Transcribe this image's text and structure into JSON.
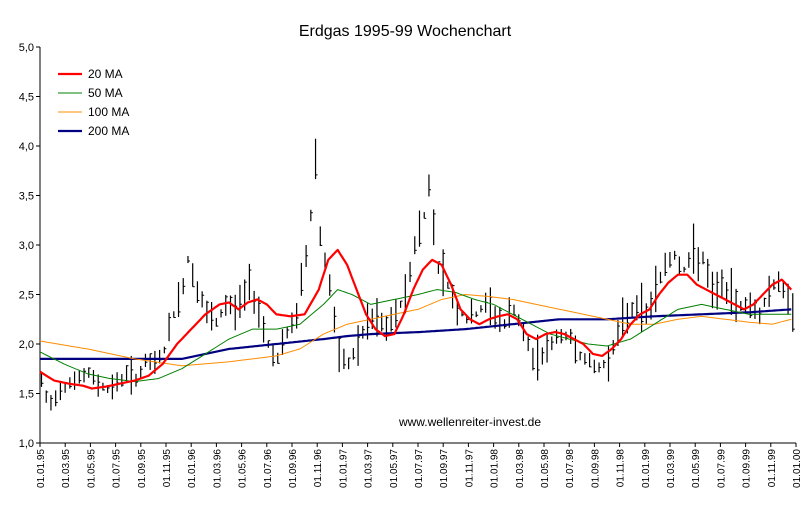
{
  "chart_data": {
    "type": "line",
    "title": "Erdgas 1995-99 Wochenchart",
    "xlabel": "",
    "ylabel": "",
    "ylim": [
      1.0,
      5.0
    ],
    "yticks": [
      "1,0",
      "1,5",
      "2,0",
      "2,5",
      "3,0",
      "3,5",
      "4,0",
      "4,5",
      "5,0"
    ],
    "ytick_values": [
      1.0,
      1.5,
      2.0,
      2.5,
      3.0,
      3.5,
      4.0,
      4.5,
      5.0
    ],
    "xticks": [
      "01.01.95",
      "01.03.95",
      "01.05.95",
      "01.07.95",
      "01.09.95",
      "01.11.95",
      "01.01.96",
      "01.03.96",
      "01.05.96",
      "01.07.96",
      "01.09.96",
      "01.11.96",
      "01.01.97",
      "01.03.97",
      "01.05.97",
      "01.07.97",
      "01.09.97",
      "01.11.97",
      "01.01.98",
      "01.03.98",
      "01.05.98",
      "01.07.98",
      "01.09.98",
      "01.11.98",
      "01.01.99",
      "01.03.99",
      "01.05.99",
      "01.07.99",
      "01.09.99",
      "01.11.99",
      "01.01.00"
    ],
    "grid": false,
    "legend_position": "top-left",
    "watermark": "www.wellenreiter-invest.de",
    "price_bars": {
      "name": "Erdgas",
      "color": "#000000",
      "anchors": [
        [
          0,
          1.62
        ],
        [
          1,
          1.45
        ],
        [
          2,
          1.4
        ],
        [
          4,
          1.55
        ],
        [
          6,
          1.62
        ],
        [
          8,
          1.65
        ],
        [
          10,
          1.7
        ],
        [
          12,
          1.6
        ],
        [
          14,
          1.55
        ],
        [
          16,
          1.6
        ],
        [
          18,
          1.7
        ],
        [
          20,
          1.65
        ],
        [
          22,
          1.8
        ],
        [
          24,
          1.8
        ],
        [
          26,
          1.95
        ],
        [
          28,
          2.3
        ],
        [
          30,
          2.6
        ],
        [
          31,
          2.85
        ],
        [
          33,
          2.55
        ],
        [
          35,
          2.3
        ],
        [
          37,
          2.2
        ],
        [
          39,
          2.4
        ],
        [
          41,
          2.35
        ],
        [
          43,
          2.5
        ],
        [
          44,
          2.6
        ],
        [
          46,
          2.35
        ],
        [
          48,
          2.0
        ],
        [
          50,
          1.85
        ],
        [
          52,
          2.1
        ],
        [
          54,
          2.3
        ],
        [
          56,
          2.9
        ],
        [
          57,
          3.3
        ],
        [
          58,
          3.9
        ],
        [
          59,
          3.1
        ],
        [
          61,
          2.6
        ],
        [
          63,
          1.85
        ],
        [
          65,
          1.8
        ],
        [
          67,
          2.0
        ],
        [
          69,
          2.2
        ],
        [
          71,
          2.25
        ],
        [
          73,
          2.15
        ],
        [
          75,
          2.3
        ],
        [
          77,
          2.5
        ],
        [
          79,
          3.0
        ],
        [
          81,
          3.3
        ],
        [
          82,
          3.6
        ],
        [
          84,
          2.8
        ],
        [
          86,
          2.6
        ],
        [
          88,
          2.35
        ],
        [
          90,
          2.25
        ],
        [
          92,
          2.3
        ],
        [
          94,
          2.4
        ],
        [
          96,
          2.3
        ],
        [
          98,
          2.2
        ],
        [
          100,
          2.35
        ],
        [
          102,
          2.1
        ],
        [
          104,
          1.85
        ],
        [
          106,
          1.9
        ],
        [
          108,
          2.0
        ],
        [
          110,
          2.1
        ],
        [
          112,
          2.05
        ],
        [
          114,
          1.9
        ],
        [
          116,
          1.8
        ],
        [
          118,
          1.75
        ],
        [
          120,
          1.85
        ],
        [
          122,
          2.1
        ],
        [
          124,
          2.3
        ],
        [
          126,
          2.4
        ],
        [
          128,
          2.3
        ],
        [
          130,
          2.55
        ],
        [
          132,
          2.8
        ],
        [
          134,
          2.9
        ],
        [
          136,
          2.75
        ],
        [
          138,
          2.9
        ],
        [
          140,
          2.85
        ],
        [
          142,
          2.5
        ],
        [
          144,
          2.6
        ],
        [
          146,
          2.45
        ],
        [
          148,
          2.4
        ],
        [
          150,
          2.4
        ],
        [
          152,
          2.3
        ],
        [
          154,
          2.55
        ],
        [
          156,
          2.65
        ],
        [
          158,
          2.4
        ]
      ]
    },
    "series": [
      {
        "name": "20 MA",
        "color": "#ff0000",
        "points": [
          [
            0,
            1.72
          ],
          [
            3,
            1.63
          ],
          [
            6,
            1.6
          ],
          [
            9,
            1.58
          ],
          [
            11,
            1.55
          ],
          [
            14,
            1.57
          ],
          [
            17,
            1.6
          ],
          [
            20,
            1.63
          ],
          [
            23,
            1.68
          ],
          [
            26,
            1.8
          ],
          [
            29,
            2.0
          ],
          [
            32,
            2.15
          ],
          [
            35,
            2.3
          ],
          [
            38,
            2.4
          ],
          [
            40,
            2.42
          ],
          [
            42,
            2.35
          ],
          [
            44,
            2.42
          ],
          [
            46,
            2.45
          ],
          [
            48,
            2.4
          ],
          [
            50,
            2.3
          ],
          [
            53,
            2.28
          ],
          [
            56,
            2.3
          ],
          [
            59,
            2.55
          ],
          [
            61,
            2.85
          ],
          [
            63,
            2.95
          ],
          [
            65,
            2.8
          ],
          [
            67,
            2.55
          ],
          [
            69,
            2.3
          ],
          [
            71,
            2.15
          ],
          [
            73,
            2.08
          ],
          [
            75,
            2.1
          ],
          [
            77,
            2.3
          ],
          [
            79,
            2.55
          ],
          [
            81,
            2.75
          ],
          [
            83,
            2.85
          ],
          [
            85,
            2.8
          ],
          [
            87,
            2.6
          ],
          [
            89,
            2.35
          ],
          [
            91,
            2.25
          ],
          [
            93,
            2.2
          ],
          [
            95,
            2.25
          ],
          [
            97,
            2.28
          ],
          [
            99,
            2.3
          ],
          [
            101,
            2.25
          ],
          [
            103,
            2.1
          ],
          [
            105,
            2.05
          ],
          [
            107,
            2.1
          ],
          [
            109,
            2.12
          ],
          [
            111,
            2.1
          ],
          [
            113,
            2.05
          ],
          [
            115,
            2.0
          ],
          [
            117,
            1.9
          ],
          [
            119,
            1.88
          ],
          [
            121,
            1.95
          ],
          [
            123,
            2.05
          ],
          [
            125,
            2.2
          ],
          [
            127,
            2.3
          ],
          [
            129,
            2.35
          ],
          [
            131,
            2.5
          ],
          [
            133,
            2.62
          ],
          [
            135,
            2.7
          ],
          [
            137,
            2.7
          ],
          [
            139,
            2.6
          ],
          [
            141,
            2.55
          ],
          [
            143,
            2.5
          ],
          [
            145,
            2.45
          ],
          [
            147,
            2.4
          ],
          [
            149,
            2.35
          ],
          [
            151,
            2.4
          ],
          [
            153,
            2.5
          ],
          [
            155,
            2.6
          ],
          [
            157,
            2.65
          ],
          [
            159,
            2.55
          ]
        ]
      },
      {
        "name": "50 MA",
        "color": "#008000",
        "points": [
          [
            0,
            1.92
          ],
          [
            5,
            1.8
          ],
          [
            10,
            1.7
          ],
          [
            15,
            1.65
          ],
          [
            20,
            1.62
          ],
          [
            25,
            1.65
          ],
          [
            30,
            1.75
          ],
          [
            35,
            1.9
          ],
          [
            40,
            2.05
          ],
          [
            45,
            2.15
          ],
          [
            50,
            2.15
          ],
          [
            55,
            2.2
          ],
          [
            60,
            2.4
          ],
          [
            63,
            2.55
          ],
          [
            66,
            2.5
          ],
          [
            70,
            2.4
          ],
          [
            75,
            2.45
          ],
          [
            80,
            2.5
          ],
          [
            84,
            2.55
          ],
          [
            88,
            2.52
          ],
          [
            92,
            2.45
          ],
          [
            96,
            2.4
          ],
          [
            100,
            2.3
          ],
          [
            104,
            2.2
          ],
          [
            108,
            2.1
          ],
          [
            112,
            2.05
          ],
          [
            116,
            2.0
          ],
          [
            120,
            1.98
          ],
          [
            125,
            2.05
          ],
          [
            130,
            2.2
          ],
          [
            135,
            2.35
          ],
          [
            140,
            2.4
          ],
          [
            145,
            2.35
          ],
          [
            150,
            2.3
          ],
          [
            155,
            2.3
          ],
          [
            159,
            2.3
          ]
        ]
      },
      {
        "name": "100 MA",
        "color": "#ff8c00",
        "points": [
          [
            0,
            2.03
          ],
          [
            10,
            1.95
          ],
          [
            20,
            1.85
          ],
          [
            30,
            1.78
          ],
          [
            40,
            1.82
          ],
          [
            50,
            1.88
          ],
          [
            55,
            1.95
          ],
          [
            60,
            2.1
          ],
          [
            65,
            2.2
          ],
          [
            70,
            2.25
          ],
          [
            75,
            2.3
          ],
          [
            80,
            2.35
          ],
          [
            85,
            2.45
          ],
          [
            90,
            2.5
          ],
          [
            95,
            2.48
          ],
          [
            100,
            2.45
          ],
          [
            105,
            2.4
          ],
          [
            110,
            2.35
          ],
          [
            115,
            2.3
          ],
          [
            120,
            2.25
          ],
          [
            125,
            2.2
          ],
          [
            130,
            2.2
          ],
          [
            135,
            2.25
          ],
          [
            140,
            2.28
          ],
          [
            145,
            2.25
          ],
          [
            150,
            2.22
          ],
          [
            155,
            2.2
          ],
          [
            159,
            2.25
          ]
        ]
      },
      {
        "name": "200 MA",
        "color": "#000080",
        "points": [
          [
            0,
            1.85
          ],
          [
            10,
            1.85
          ],
          [
            20,
            1.85
          ],
          [
            30,
            1.85
          ],
          [
            40,
            1.95
          ],
          [
            50,
            2.0
          ],
          [
            60,
            2.05
          ],
          [
            65,
            2.08
          ],
          [
            70,
            2.1
          ],
          [
            80,
            2.12
          ],
          [
            90,
            2.15
          ],
          [
            100,
            2.2
          ],
          [
            110,
            2.25
          ],
          [
            120,
            2.25
          ],
          [
            130,
            2.28
          ],
          [
            140,
            2.3
          ],
          [
            150,
            2.32
          ],
          [
            159,
            2.35
          ]
        ]
      }
    ]
  }
}
